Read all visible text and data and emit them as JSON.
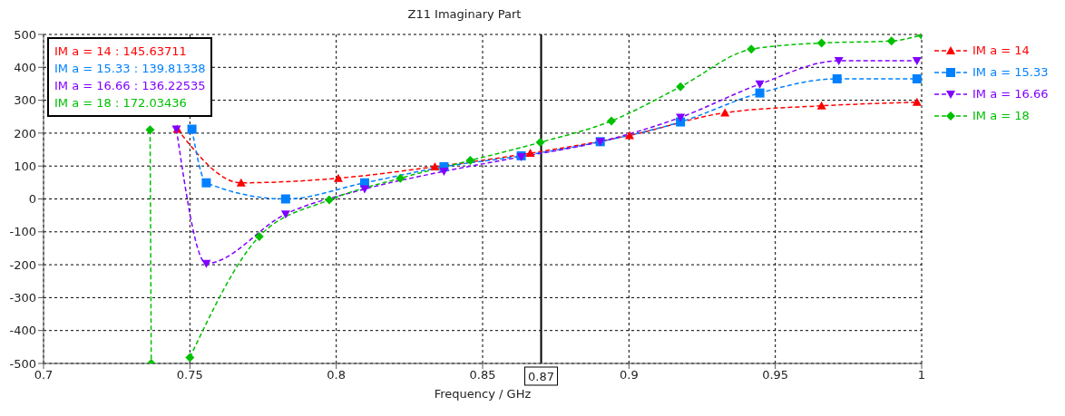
{
  "chart_data": {
    "type": "line",
    "title": "Z11 Imaginary Part",
    "xlabel": "Frequency / GHz",
    "xlim": [
      0.7,
      1
    ],
    "xticks": [
      0.7,
      0.75,
      0.8,
      0.85,
      0.9,
      0.95,
      1
    ],
    "ylim": [
      -500,
      500
    ],
    "yticks": [
      -500,
      -400,
      -300,
      -200,
      -100,
      0,
      100,
      200,
      300,
      400,
      500
    ],
    "grid": true,
    "legend": "right",
    "line_style": "dashed",
    "series": [
      {
        "name": "IM a = 14",
        "color": "#ff0000",
        "marker": "triangle",
        "x": [
          0.7457,
          0.7675,
          0.8007,
          0.8337,
          0.8663,
          0.9002,
          0.9328,
          0.9658,
          0.9984
        ],
        "values": [
          212,
          49,
          63,
          98,
          139,
          193,
          262,
          283,
          294
        ]
      },
      {
        "name": "IM a = 15.33",
        "color": "#0080ff",
        "marker": "square",
        "x": [
          0.7507,
          0.7556,
          0.7827,
          0.8097,
          0.8368,
          0.8632,
          0.8902,
          0.9176,
          0.9447,
          0.9711,
          0.9984
        ],
        "values": [
          212,
          49,
          0,
          49,
          98,
          131,
          174,
          234,
          322,
          365,
          365
        ]
      },
      {
        "name": "IM a = 16.66",
        "color": "#8000ff",
        "marker": "triangle-down",
        "x": [
          0.7454,
          0.7556,
          0.7827,
          0.8097,
          0.8368,
          0.8632,
          0.8902,
          0.9176,
          0.9447,
          0.9717,
          0.9984
        ],
        "values": [
          212,
          -196,
          -46,
          30,
          84,
          128,
          174,
          248,
          349,
          420,
          420
        ]
      },
      {
        "name": "IM a = 18",
        "color": "#00c000",
        "marker": "diamond",
        "x": [
          0.7364,
          0.7368,
          0.743,
          0.75,
          0.7737,
          0.7976,
          0.8219,
          0.8458,
          0.8697,
          0.894,
          0.9176,
          0.9418,
          0.9658,
          0.9897,
          1
        ],
        "values": [
          210,
          -500,
          null,
          -482,
          -114,
          -3,
          63,
          117,
          172,
          237,
          341,
          455,
          474,
          480,
          498
        ]
      }
    ],
    "ref_lines": [
      {
        "axis": "x",
        "value": 0.87,
        "label": "0.87",
        "color": "#000000",
        "line_style": "solid"
      }
    ],
    "annotations": [
      "IM a = 14 : 145.63711",
      "IM a = 15.33 : 139.81338",
      "IM a = 16.66 : 136.22535",
      "IM a = 18 : 172.03436"
    ]
  }
}
